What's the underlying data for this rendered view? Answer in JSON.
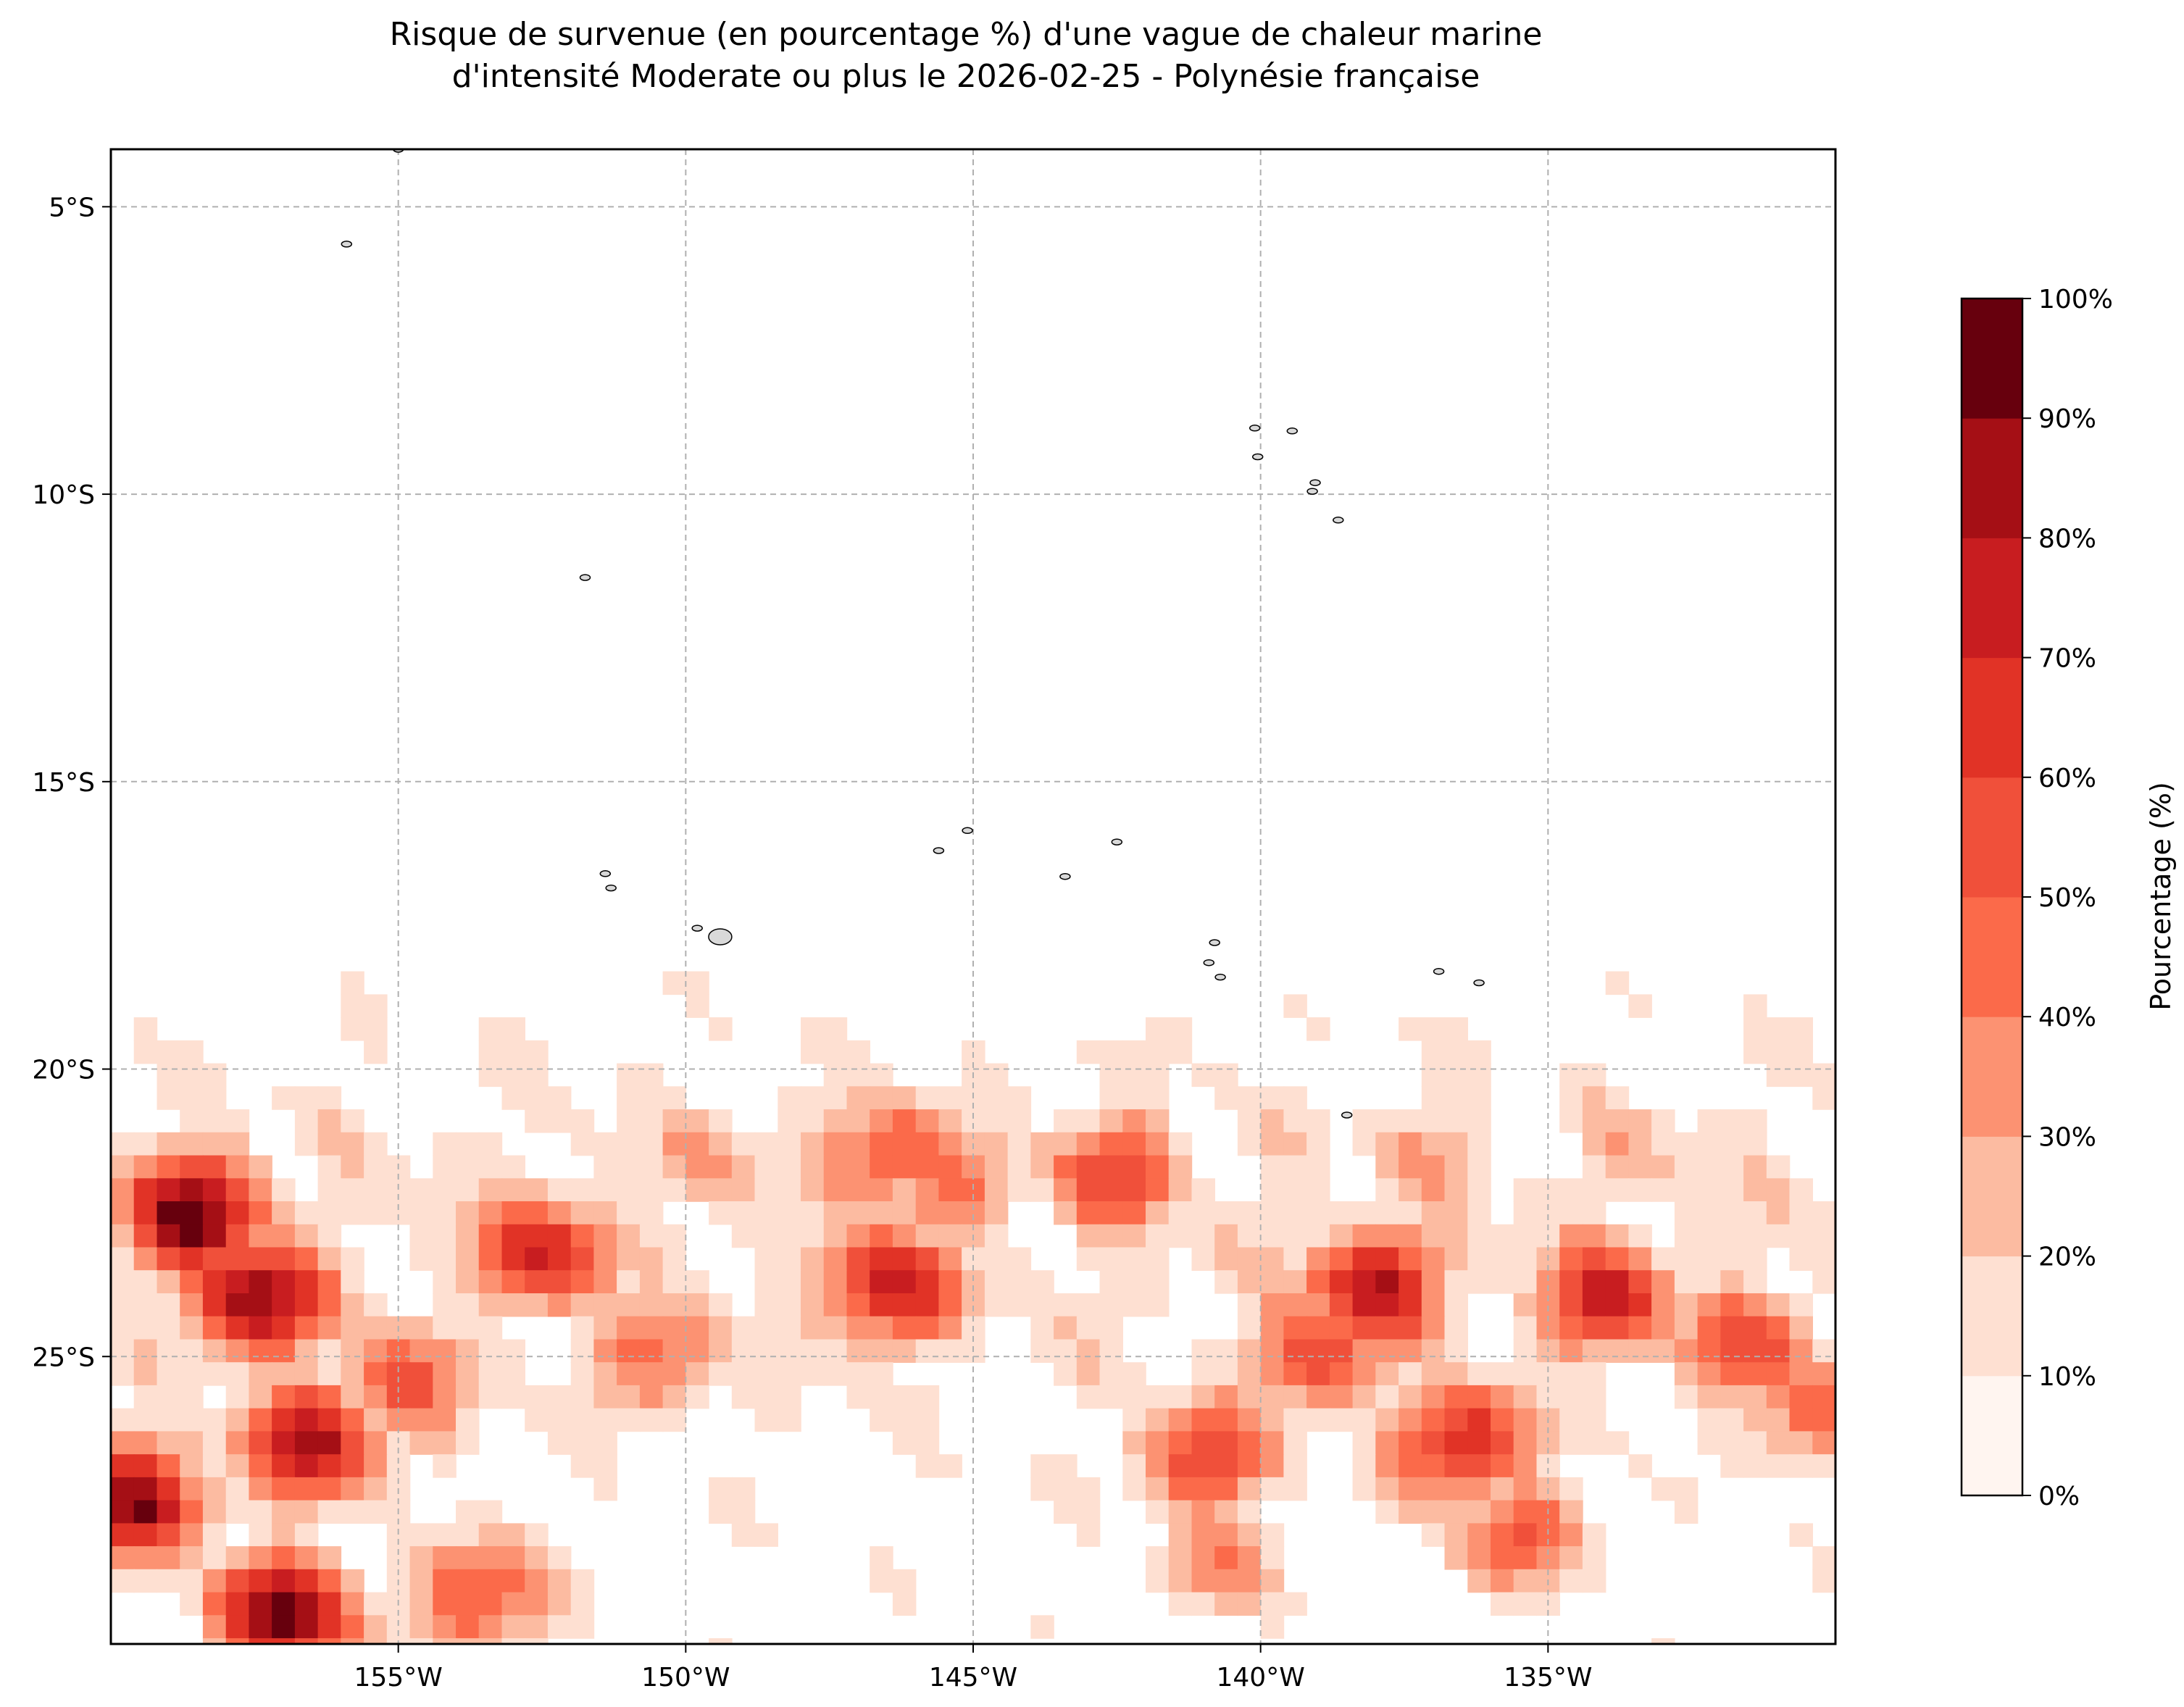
{
  "title": {
    "line1": "Risque de survenue (en pourcentage %) d'une vague de chaleur marine",
    "line2": "d'intensité Moderate ou plus le 2026-02-25 - Polynésie française"
  },
  "map": {
    "projection": "PlateCarree",
    "lon_range": [
      -160,
      -130
    ],
    "lat_range": [
      -30,
      -4
    ],
    "gridlines": true,
    "lon_ticks": [
      {
        "value": -155,
        "label": "155°W"
      },
      {
        "value": -150,
        "label": "150°W"
      },
      {
        "value": -145,
        "label": "145°W"
      },
      {
        "value": -140,
        "label": "140°W"
      },
      {
        "value": -135,
        "label": "135°W"
      }
    ],
    "lat_ticks": [
      {
        "value": -5,
        "label": "5°S"
      },
      {
        "value": -10,
        "label": "10°S"
      },
      {
        "value": -15,
        "label": "15°S"
      },
      {
        "value": -20,
        "label": "20°S"
      },
      {
        "value": -25,
        "label": "25°S"
      }
    ],
    "data_region": {
      "lat_north": -16.3,
      "lon_east": -130
    },
    "hotspots": [
      {
        "lon": -158.5,
        "lat": -22.5,
        "value": 95
      },
      {
        "lon": -157.5,
        "lat": -24.0,
        "value": 92
      },
      {
        "lon": -159.5,
        "lat": -27.5,
        "value": 85
      },
      {
        "lon": -157.0,
        "lat": -29.5,
        "value": 92
      },
      {
        "lon": -156.5,
        "lat": -26.5,
        "value": 78
      },
      {
        "lon": -155.0,
        "lat": -25.5,
        "value": 55
      },
      {
        "lon": -153.5,
        "lat": -29.2,
        "value": 55
      },
      {
        "lon": -152.5,
        "lat": -23.2,
        "value": 70
      },
      {
        "lon": -150.5,
        "lat": -25.0,
        "value": 45
      },
      {
        "lon": -149.5,
        "lat": -21.5,
        "value": 30
      },
      {
        "lon": -146.5,
        "lat": -21.5,
        "value": 55
      },
      {
        "lon": -145.5,
        "lat": -22.0,
        "value": 45
      },
      {
        "lon": -146.5,
        "lat": -23.8,
        "value": 75
      },
      {
        "lon": -142.5,
        "lat": -21.8,
        "value": 58
      },
      {
        "lon": -141.0,
        "lat": -26.8,
        "value": 60
      },
      {
        "lon": -140.5,
        "lat": -28.5,
        "value": 35
      },
      {
        "lon": -138.0,
        "lat": -23.8,
        "value": 80
      },
      {
        "lon": -139.0,
        "lat": -25.0,
        "value": 60
      },
      {
        "lon": -136.5,
        "lat": -26.5,
        "value": 72
      },
      {
        "lon": -135.5,
        "lat": -28.0,
        "value": 48
      },
      {
        "lon": -134.0,
        "lat": -24.0,
        "value": 72
      },
      {
        "lon": -131.5,
        "lat": -24.8,
        "value": 55
      },
      {
        "lon": -130.5,
        "lat": -26.0,
        "value": 45
      },
      {
        "lon": -137.0,
        "lat": -21.5,
        "value": 30
      },
      {
        "lon": -133.5,
        "lat": -21.5,
        "value": 25
      }
    ],
    "islands": [
      {
        "lon": -155.0,
        "lat": -4.0
      },
      {
        "lon": -155.9,
        "lat": -5.65
      },
      {
        "lon": -151.75,
        "lat": -11.45
      },
      {
        "lon": -151.4,
        "lat": -16.6
      },
      {
        "lon": -151.3,
        "lat": -16.85
      },
      {
        "lon": -149.8,
        "lat": -17.55
      },
      {
        "lon": -149.4,
        "lat": -17.7
      },
      {
        "lon": -145.6,
        "lat": -16.2
      },
      {
        "lon": -145.1,
        "lat": -15.85
      },
      {
        "lon": -143.4,
        "lat": -16.65
      },
      {
        "lon": -142.5,
        "lat": -16.05
      },
      {
        "lon": -140.8,
        "lat": -17.8
      },
      {
        "lon": -140.9,
        "lat": -18.15
      },
      {
        "lon": -140.7,
        "lat": -18.4
      },
      {
        "lon": -140.1,
        "lat": -8.85
      },
      {
        "lon": -139.45,
        "lat": -8.9
      },
      {
        "lon": -140.05,
        "lat": -9.35
      },
      {
        "lon": -139.05,
        "lat": -9.8
      },
      {
        "lon": -139.1,
        "lat": -9.95
      },
      {
        "lon": -138.65,
        "lat": -10.45
      },
      {
        "lon": -138.5,
        "lat": -20.8
      },
      {
        "lon": -136.9,
        "lat": -18.3
      },
      {
        "lon": -136.2,
        "lat": -18.5
      }
    ]
  },
  "colorbar": {
    "label": "Pourcentage (%)",
    "levels": [
      "0%",
      "10%",
      "20%",
      "30%",
      "40%",
      "50%",
      "60%",
      "70%",
      "80%",
      "90%",
      "100%"
    ],
    "colors": [
      "#fff5f0",
      "#fee0d2",
      "#fcbba1",
      "#fc9272",
      "#fb6a4a",
      "#f0503a",
      "#e13326",
      "#c81d20",
      "#a50f15",
      "#67000d"
    ]
  }
}
